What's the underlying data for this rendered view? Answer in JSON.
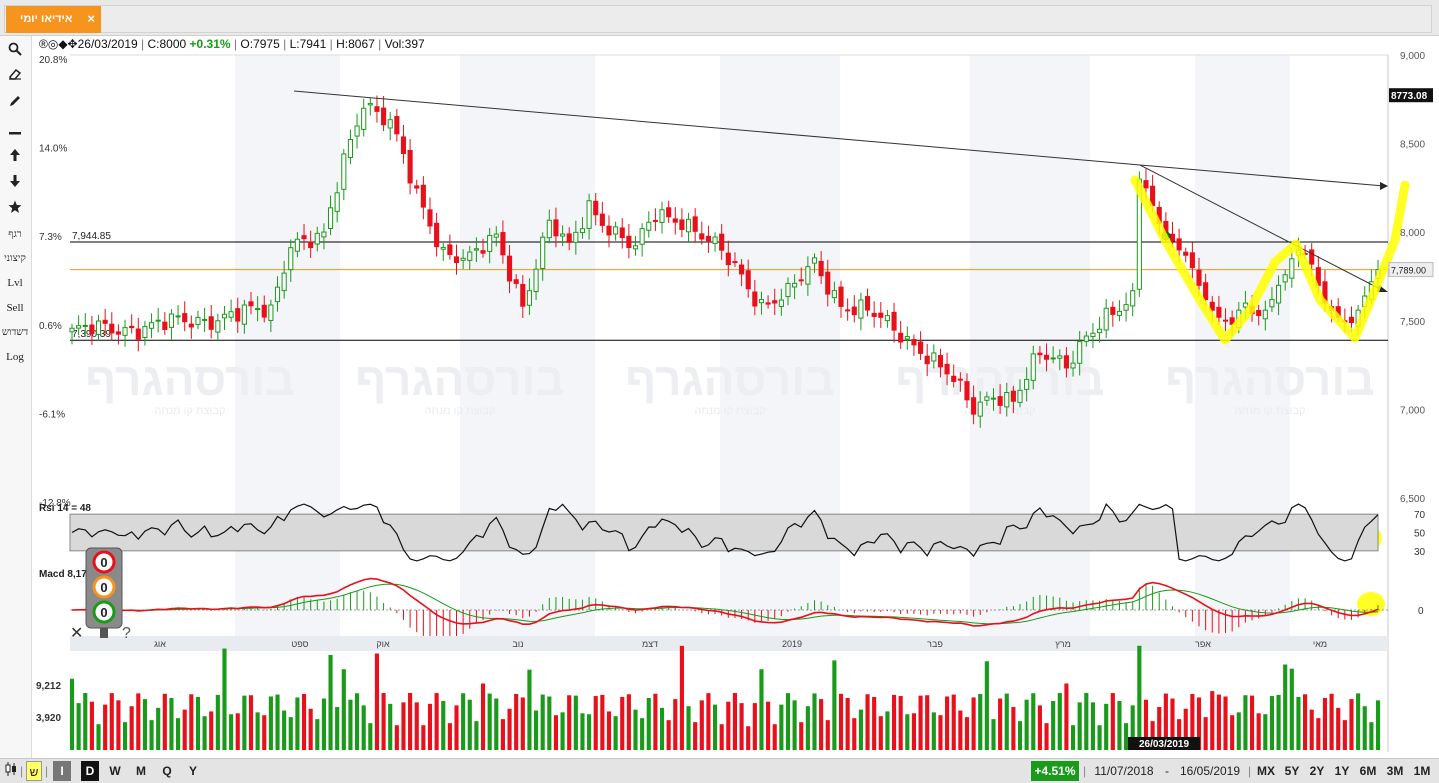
{
  "tab": {
    "title": "אידיאו יומי",
    "close": "×"
  },
  "toolbar": {
    "icons": [
      "search-icon",
      "eraser-icon",
      "pencil-icon",
      "line-icon",
      "arrow-up-icon",
      "arrow-down-icon",
      "star-icon"
    ],
    "text_tools": [
      "רגף",
      "קיצוני",
      "Lvl",
      "Sell",
      "דשדוש",
      "Log"
    ]
  },
  "info": {
    "symbols": "®◎◆✥",
    "date": "26/03/2019",
    "close_label": "C:",
    "close": "8000",
    "change": "+0.31%",
    "open_label": "O:",
    "open": "7975",
    "low_label": "L:",
    "low": "7941",
    "high_label": "H:",
    "high": "8067",
    "vol_label": "Vol:",
    "vol": "397"
  },
  "watermark": {
    "brand": "בורסהגרף",
    "sub": "קבוצת קו מנחה"
  },
  "chart_data": [
    {
      "type": "candlestick",
      "name": "price",
      "y_left_ticks": [
        "20.8%",
        "14.0%",
        "7.3%",
        "0.6%",
        "-6.1%",
        "-12.8%"
      ],
      "y_right_ticks": [
        "9,000",
        "8,500",
        "8,000",
        "7,500",
        "7,000",
        "6,500"
      ],
      "ylim": [
        6500,
        9000
      ],
      "levels": [
        {
          "label": "7,944.85",
          "value": 7944.85,
          "color": "#000000"
        },
        {
          "label": "7,390.39",
          "value": 7390.39,
          "color": "#000000"
        },
        {
          "value": 7789,
          "color": "#f7941d"
        }
      ],
      "markers": [
        {
          "label": "8773.08",
          "value": 8773.08,
          "style": "dark"
        },
        {
          "label": "7,789.00",
          "value": 7789,
          "style": "light"
        }
      ],
      "x_month_labels": [
        "אוג",
        "ספט",
        "אוק",
        "נוב",
        "דצמ",
        "2019",
        "פבר",
        "מרץ",
        "אפר",
        "מאי"
      ],
      "up_color": "#1a9a1a",
      "down_color": "#e8101a"
    },
    {
      "type": "line",
      "name": "rsi",
      "label": "Rsi 14 = 48",
      "ylim": [
        20,
        80
      ],
      "band": [
        30,
        70
      ],
      "ticks": [
        "70",
        "50",
        "30"
      ]
    },
    {
      "type": "line",
      "name": "macd",
      "label": "Macd 8,17",
      "ticks": [
        "0"
      ],
      "series_colors": [
        "#e8101a",
        "#1a9a1a"
      ]
    },
    {
      "type": "bar",
      "name": "volume",
      "ticks": [
        "9,212",
        "3,920"
      ],
      "cursor_date": "26/03/2019"
    }
  ],
  "traffic_light": {
    "lights": [
      "0",
      "0",
      "0"
    ],
    "close": "✕",
    "help": "?"
  },
  "bottom": {
    "chart_type_icon": "candle-icon",
    "language": "ש",
    "mode_i": "I",
    "periods": [
      "D",
      "W",
      "M",
      "Q",
      "Y"
    ],
    "change": "+4.51%",
    "from_date": "11/07/2018",
    "dash": "-",
    "to_date": "16/05/2019",
    "ranges": [
      "MX",
      "5Y",
      "2Y",
      "1Y",
      "6M",
      "3M",
      "1M"
    ]
  }
}
